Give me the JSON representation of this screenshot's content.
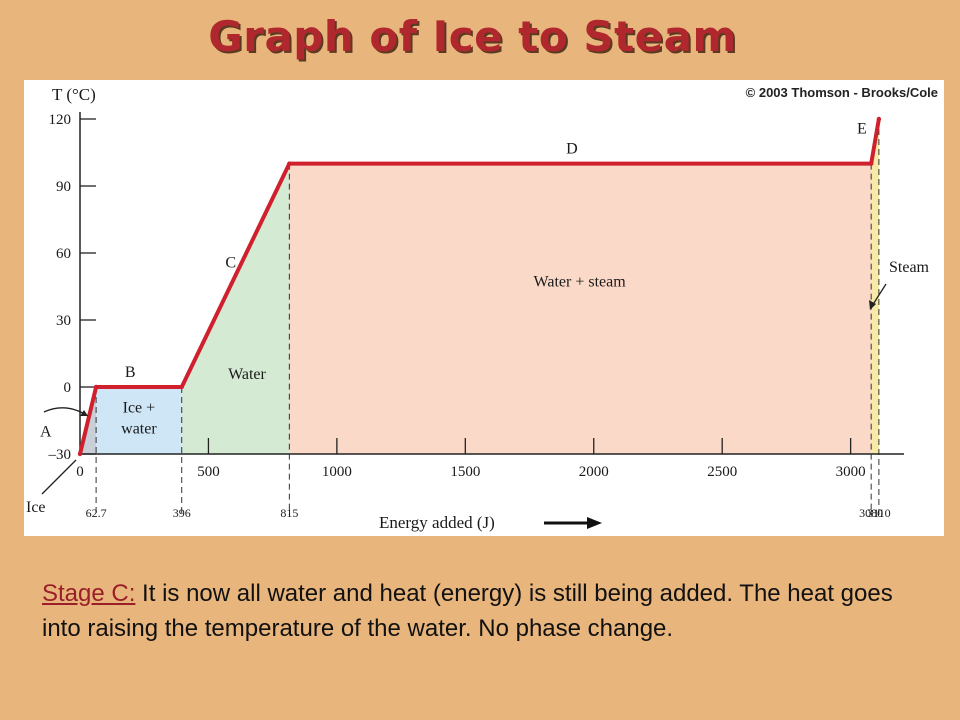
{
  "slide": {
    "title": "Graph of Ice to Steam",
    "copyright": "© 2003 Thomson - Brooks/Cole"
  },
  "caption": {
    "lead": "Stage C:",
    "text": " It is now all water and heat (energy) is still being added.  The heat goes into raising the temperature of the water.  No phase change."
  },
  "chart_data": {
    "type": "line",
    "title": "",
    "xlabel": "Energy added (J)",
    "ylabel": "T (°C)",
    "xlim": [
      0,
      3200
    ],
    "ylim": [
      -30,
      120
    ],
    "x_ticks": [
      500,
      1000,
      1500,
      2000,
      2500,
      3000
    ],
    "y_ticks": [
      -30,
      0,
      30,
      60,
      90,
      120
    ],
    "x_ticks_labels": [
      "500",
      "1000",
      "1500",
      "2000",
      "2500",
      "3000"
    ],
    "y_ticks_labels": [
      "–30",
      "0",
      "30",
      "60",
      "90",
      "120"
    ],
    "x_origin_label": "0",
    "transition_points": [
      {
        "x": 62.7,
        "label": "62.7"
      },
      {
        "x": 396,
        "label": "396"
      },
      {
        "x": 815,
        "label": "815"
      },
      {
        "x": 3080,
        "label": "3080"
      },
      {
        "x": 3110,
        "label": "3110"
      }
    ],
    "series": [
      {
        "color": "#d0202e",
        "points": [
          [
            0,
            -30
          ],
          [
            62.7,
            0
          ],
          [
            396,
            0
          ],
          [
            815,
            100
          ],
          [
            3080,
            100
          ],
          [
            3110,
            120
          ]
        ]
      }
    ],
    "segment_labels": [
      {
        "label": "A",
        "x": 31,
        "y": -15
      },
      {
        "label": "B",
        "x": 229,
        "y": 0
      },
      {
        "label": "C",
        "x": 605,
        "y": 50
      },
      {
        "label": "D",
        "x": 1947,
        "y": 100
      },
      {
        "label": "E",
        "x": 3095,
        "y": 110
      }
    ],
    "regions": [
      {
        "name": "ice",
        "label": "Ice",
        "x": [
          0,
          62.7
        ],
        "color": "#c9cfd6"
      },
      {
        "name": "ice-water",
        "label": "Ice + water",
        "x": [
          62.7,
          396
        ],
        "color": "#cfe6f6"
      },
      {
        "name": "water",
        "label": "Water",
        "x": [
          396,
          815
        ],
        "color": "#d5ead3"
      },
      {
        "name": "water-steam",
        "label": "Water + steam",
        "x": [
          815,
          3080
        ],
        "color": "#fbd9c8"
      },
      {
        "name": "steam",
        "label": "Steam",
        "x": [
          3080,
          3110
        ],
        "color": "#f6eaa6"
      }
    ],
    "grid": false,
    "legend": "none"
  }
}
